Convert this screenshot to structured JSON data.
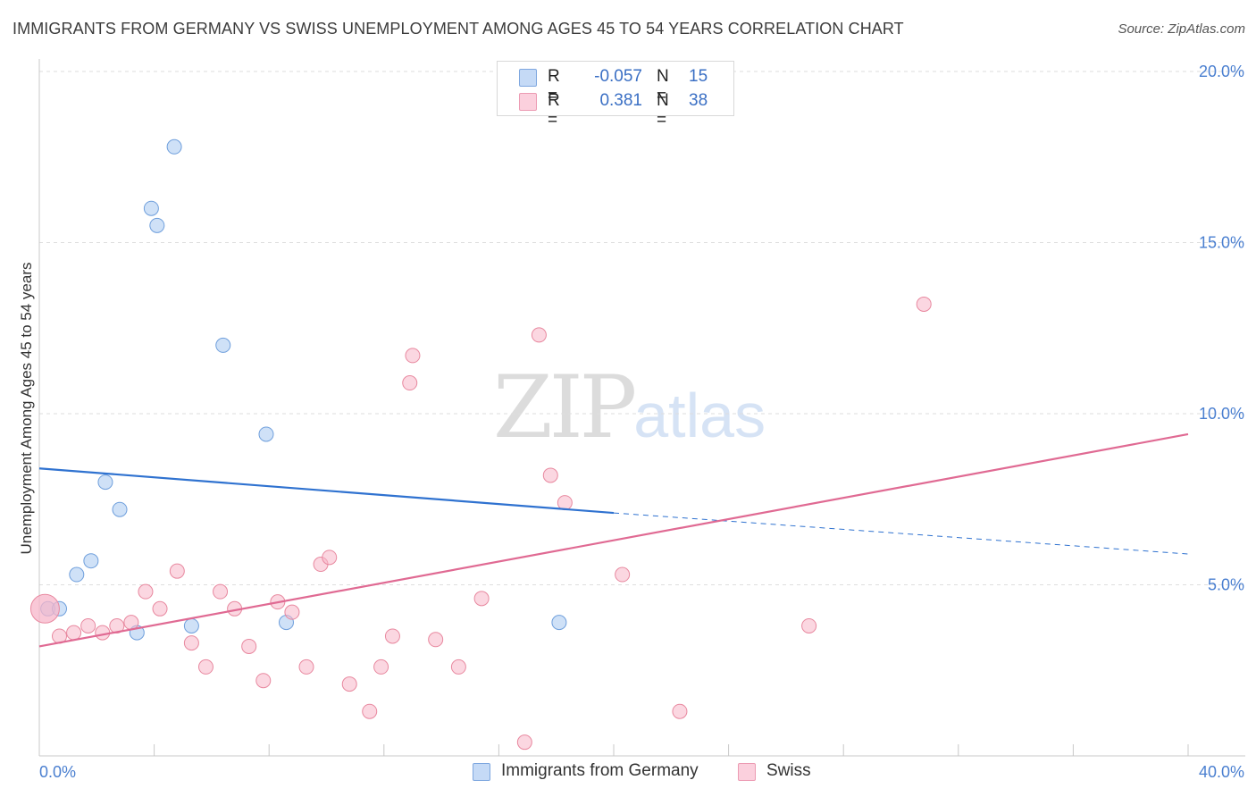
{
  "header": {
    "title": "IMMIGRANTS FROM GERMANY VS SWISS UNEMPLOYMENT AMONG AGES 45 TO 54 YEARS CORRELATION CHART",
    "source": "Source: ZipAtlas.com"
  },
  "watermark": {
    "zip": "ZIP",
    "atlas": "atlas"
  },
  "legend": {
    "germany": {
      "r_label": "R =",
      "r_value": "-0.057",
      "n_label": "N =",
      "n_value": "15",
      "color": "#a8c8f0"
    },
    "swiss": {
      "r_label": "R =",
      "r_value": "0.381",
      "n_label": "N =",
      "n_value": "38",
      "color": "#f7b6c9"
    }
  },
  "bottom_legend": {
    "germany": "Immigrants from Germany",
    "swiss": "Swiss"
  },
  "chart_data": {
    "type": "scatter",
    "title": "IMMIGRANTS FROM GERMANY VS SWISS UNEMPLOYMENT AMONG AGES 45 TO 54 YEARS CORRELATION CHART",
    "xlabel": "",
    "ylabel": "Unemployment Among Ages 45 to 54 years",
    "xlim": [
      0,
      40
    ],
    "ylim": [
      0,
      20
    ],
    "x_tick_labels": [
      "0.0%",
      "40.0%"
    ],
    "y_tick_labels": [
      "5.0%",
      "10.0%",
      "15.0%",
      "20.0%"
    ],
    "y_tick_values": [
      5,
      10,
      15,
      20
    ],
    "series": [
      {
        "name": "Immigrants from Germany",
        "color": "#a8c8f0",
        "stroke": "#6f9fdc",
        "line_color": "#2f72d0",
        "points": [
          [
            0.3,
            4.3
          ],
          [
            0.7,
            4.3
          ],
          [
            1.3,
            5.3
          ],
          [
            1.8,
            5.7
          ],
          [
            2.3,
            8.0
          ],
          [
            2.8,
            7.2
          ],
          [
            3.4,
            3.6
          ],
          [
            3.9,
            16.0
          ],
          [
            4.1,
            15.5
          ],
          [
            4.7,
            17.8
          ],
          [
            5.3,
            3.8
          ],
          [
            6.4,
            12.0
          ],
          [
            7.9,
            9.4
          ],
          [
            8.6,
            3.9
          ],
          [
            18.1,
            3.9
          ]
        ],
        "trend": {
          "x0": 0,
          "y0": 8.4,
          "x1": 20,
          "y1": 7.1,
          "x_dash_end": 40,
          "y_dash_end": 5.9
        }
      },
      {
        "name": "Swiss",
        "color": "#f7b6c9",
        "stroke": "#e8889f",
        "line_color": "#e06a93",
        "points": [
          [
            0.2,
            4.3
          ],
          [
            0.7,
            3.5
          ],
          [
            1.2,
            3.6
          ],
          [
            1.7,
            3.8
          ],
          [
            2.2,
            3.6
          ],
          [
            2.7,
            3.8
          ],
          [
            3.2,
            3.9
          ],
          [
            3.7,
            4.8
          ],
          [
            4.2,
            4.3
          ],
          [
            4.8,
            5.4
          ],
          [
            5.3,
            3.3
          ],
          [
            5.8,
            2.6
          ],
          [
            6.3,
            4.8
          ],
          [
            6.8,
            4.3
          ],
          [
            7.3,
            3.2
          ],
          [
            7.8,
            2.2
          ],
          [
            8.3,
            4.5
          ],
          [
            8.8,
            4.2
          ],
          [
            9.3,
            2.6
          ],
          [
            9.8,
            5.6
          ],
          [
            10.1,
            5.8
          ],
          [
            10.8,
            2.1
          ],
          [
            11.5,
            1.3
          ],
          [
            11.9,
            2.6
          ],
          [
            12.3,
            3.5
          ],
          [
            12.9,
            10.9
          ],
          [
            13.0,
            11.7
          ],
          [
            13.8,
            3.4
          ],
          [
            14.6,
            2.6
          ],
          [
            15.4,
            4.6
          ],
          [
            16.9,
            0.4
          ],
          [
            17.4,
            12.3
          ],
          [
            17.8,
            8.2
          ],
          [
            18.3,
            7.4
          ],
          [
            20.3,
            5.3
          ],
          [
            22.3,
            1.3
          ],
          [
            26.8,
            3.8
          ],
          [
            30.8,
            13.2
          ]
        ],
        "trend": {
          "x0": 0,
          "y0": 3.2,
          "x1": 40,
          "y1": 9.4
        }
      }
    ]
  }
}
